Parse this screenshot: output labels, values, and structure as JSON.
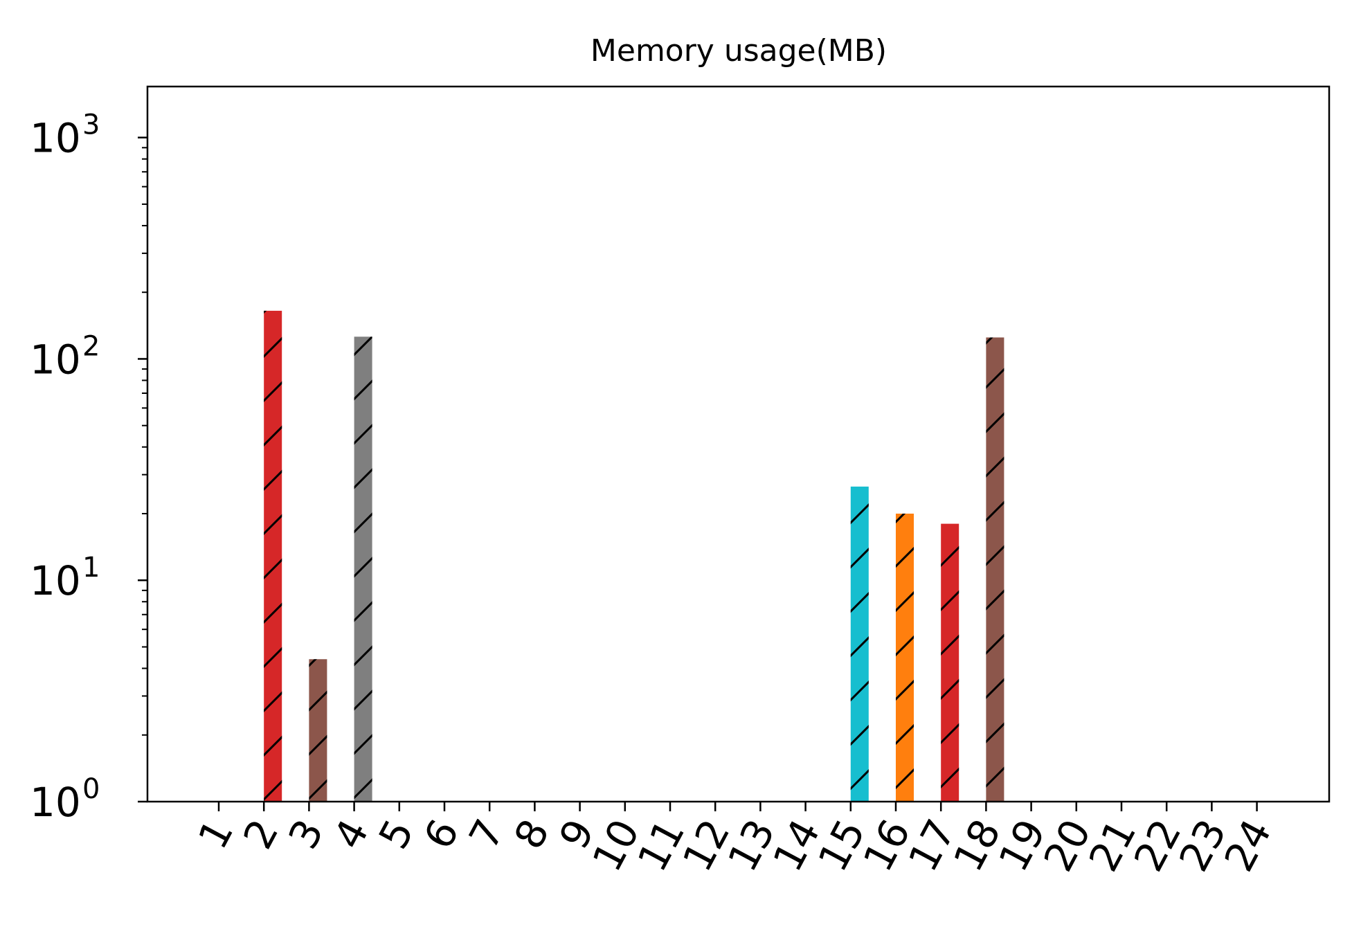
{
  "chart_data": {
    "type": "bar",
    "title": "Memory usage(MB)",
    "xlabel": "",
    "ylabel": "",
    "yscale": "log",
    "ylim": [
      1,
      1700
    ],
    "grid": false,
    "legend": "none",
    "hatch": "/",
    "categories": [
      "1",
      "2",
      "3",
      "4",
      "5",
      "6",
      "7",
      "8",
      "9",
      "10",
      "11",
      "12",
      "13",
      "14",
      "15",
      "16",
      "17",
      "18",
      "19",
      "20",
      "21",
      "22",
      "23",
      "24"
    ],
    "bars": [
      {
        "category": "2",
        "value": 165,
        "color": "#d62728"
      },
      {
        "category": "3",
        "value": 4.4,
        "color": "#8c564b"
      },
      {
        "category": "4",
        "value": 126,
        "color": "#7f7f7f"
      },
      {
        "category": "15",
        "value": 26.5,
        "color": "#17becf"
      },
      {
        "category": "16",
        "value": 20,
        "color": "#ff7f0e"
      },
      {
        "category": "17",
        "value": 18,
        "color": "#d62728"
      },
      {
        "category": "18",
        "value": 125,
        "color": "#8c564b"
      }
    ],
    "yticks": [
      {
        "value": 1,
        "base": "10",
        "exp": "0"
      },
      {
        "value": 10,
        "base": "10",
        "exp": "1"
      },
      {
        "value": 100,
        "base": "10",
        "exp": "2"
      },
      {
        "value": 1000,
        "base": "10",
        "exp": "3"
      }
    ]
  }
}
